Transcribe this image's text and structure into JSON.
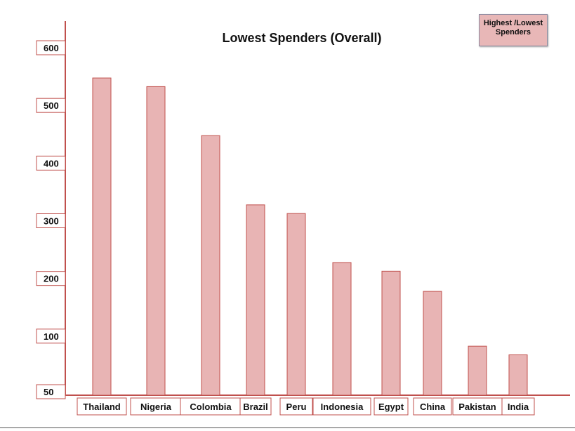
{
  "chart_data": {
    "type": "bar",
    "title": "Lowest Spenders (Overall)",
    "xlabel": "",
    "ylabel": "",
    "categories": [
      "Thailand",
      "Nigeria",
      "Colombia",
      "Brazil",
      "Peru",
      "Indonesia",
      "Egypt",
      "China",
      "Pakistan",
      "India"
    ],
    "values": [
      550,
      535,
      450,
      330,
      315,
      230,
      215,
      180,
      85,
      70
    ],
    "y_tick_labels": [
      "50",
      "100",
      "200",
      "300",
      "400",
      "500",
      "600"
    ],
    "y_ticks": [
      50,
      100,
      200,
      300,
      400,
      500,
      600
    ],
    "ylim": [
      0,
      600
    ],
    "grid": false,
    "legend_placement": "top-right",
    "legend": {
      "line1": "Highest /Lowest",
      "line2": "Spenders"
    },
    "colors": {
      "bar_fill": "#e8b4b4",
      "bar_stroke": "#c0504d",
      "axis": "#c0504d",
      "label_box_border": "#c0504d"
    }
  }
}
